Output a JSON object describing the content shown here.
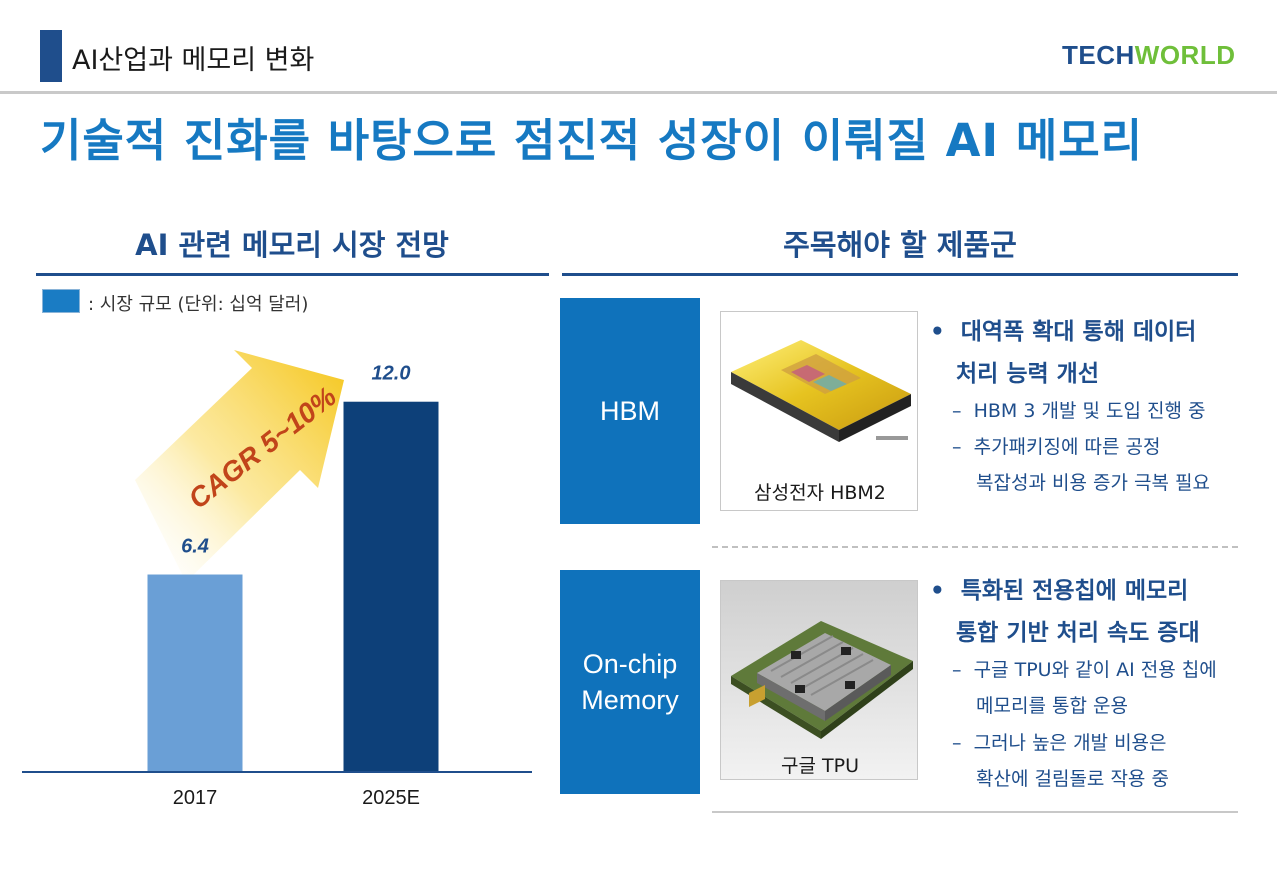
{
  "header": {
    "section_label": "AI산업과 메모리 변화",
    "logo_tech": "TECH",
    "logo_world": "WORLD"
  },
  "title": "기술적 진화를 바탕으로 점진적 성장이 이뤄질 AI 메모리",
  "left_section": {
    "title": "AI 관련 메모리 시장 전망",
    "legend": ": 시장 규모 (단위: 십억 달러)"
  },
  "chart_data": {
    "type": "bar",
    "categories": [
      "2017",
      "2025E"
    ],
    "values": [
      6.4,
      12.0
    ],
    "value_labels": [
      "6.4",
      "12.0"
    ],
    "colors": [
      "#6a9fd6",
      "#0d4079"
    ],
    "annotation": "CAGR 5~10%",
    "arrow_color": "#f5c518",
    "annotation_color": "#c1441a",
    "ylim": [
      0,
      14
    ],
    "grid": false
  },
  "right_section": {
    "title": "주목해야 할 제품군",
    "products": [
      {
        "category": "HBM",
        "image_caption": "삼성전자 HBM2",
        "bullet_lines": [
          "대역폭 확대 통해 데이터",
          "처리 능력 개선"
        ],
        "sub_items": [
          [
            "HBM 3 개발 및 도입 진행 중"
          ],
          [
            "추가패키징에 따른 공정",
            "복잡성과 비용 증가 극복 필요"
          ]
        ]
      },
      {
        "category_lines": [
          "On-chip",
          "Memory"
        ],
        "image_caption": "구글 TPU",
        "bullet_lines": [
          "특화된 전용칩에 메모리",
          "통합 기반 처리 속도 증대"
        ],
        "sub_items": [
          [
            "구글 TPU와 같이 AI 전용 칩에",
            "메모리를 통합 운용"
          ],
          [
            "그러나 높은 개발 비용은",
            "확산에 걸림돌로 작용 중"
          ]
        ]
      }
    ]
  },
  "colors": {
    "brand_blue": "#1f4e8c",
    "title_blue": "#1679c2",
    "category_box": "#0f72bb",
    "logo_green": "#6fbf3a"
  }
}
